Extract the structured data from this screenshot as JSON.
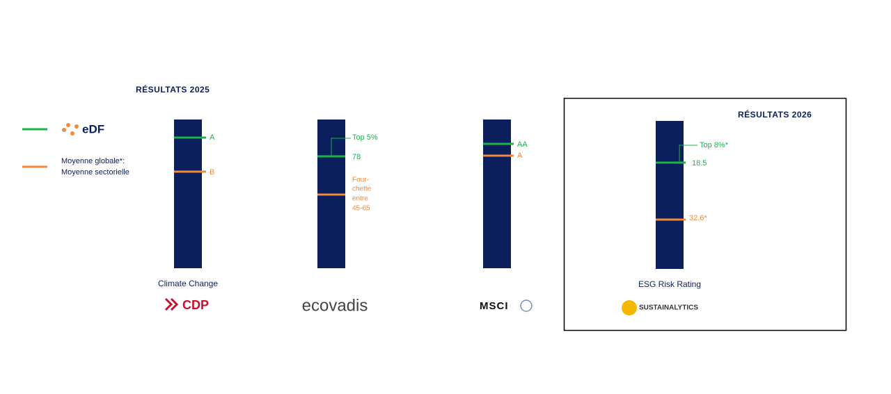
{
  "header": {
    "title_2025": "RÉSULTATS 2025",
    "title_2026": "RÉSULTATS 2026"
  },
  "legend": {
    "brand": "eDF",
    "global_label": "Moyenne globale*:",
    "sector_label": "Moyenne sectorielle"
  },
  "columns": [
    {
      "name": "Climate Change",
      "logo": "CDP",
      "edf": "A",
      "average": "B"
    },
    {
      "logo": "ecovadis",
      "percentile": "Top 5%",
      "edf": "78",
      "average": [
        "Four-",
        "chette",
        "entre",
        "45-65"
      ]
    },
    {
      "logo": "MSCI",
      "edf": "AA",
      "average": "A"
    },
    {
      "name": "ESG Risk Rating",
      "logo": "SUSTAINALYTICS",
      "percentile": "Top 8%*",
      "edf": "18.5",
      "average": "32.6*"
    }
  ]
}
